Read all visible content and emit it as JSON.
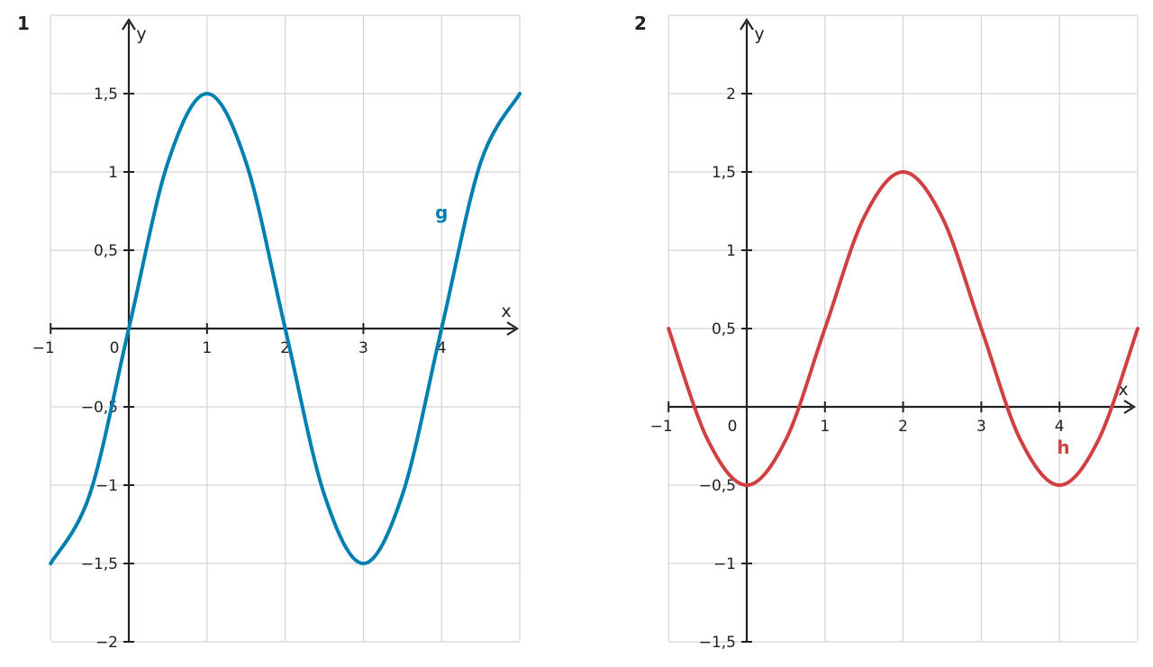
{
  "chart_data": [
    {
      "type": "line",
      "panel_number": "1",
      "xlabel": "x",
      "ylabel": "y",
      "xlim": [
        -1,
        5
      ],
      "ylim": [
        -2,
        2
      ],
      "x_ticks": [
        -1,
        0,
        1,
        2,
        3,
        4
      ],
      "x_tick_labels": [
        "−1",
        "0",
        "1",
        "2",
        "3",
        "4"
      ],
      "y_ticks": [
        -2,
        -1.5,
        -1,
        -0.5,
        0.5,
        1,
        1.5
      ],
      "y_tick_labels": [
        "−2",
        "−1,5",
        "−1",
        "−0,5",
        "0,5",
        "1",
        "1,5"
      ],
      "grid": true,
      "series": [
        {
          "name": "g",
          "color": "#0080b0",
          "label_at": [
            4.0,
            0.7
          ],
          "x": [
            -1,
            -0.5,
            0,
            0.5,
            1,
            1.5,
            2,
            2.5,
            3,
            3.5,
            4,
            4.5,
            5
          ],
          "y": [
            -1.5,
            -1.06,
            0,
            1.06,
            1.5,
            1.06,
            0,
            -1.06,
            -1.5,
            -1.06,
            0,
            1.06,
            1.5
          ]
        }
      ]
    },
    {
      "type": "line",
      "panel_number": "2",
      "xlabel": "x",
      "ylabel": "y",
      "xlim": [
        -1,
        5
      ],
      "ylim": [
        -1.5,
        2.5
      ],
      "x_ticks": [
        -1,
        0,
        1,
        2,
        3,
        4
      ],
      "x_tick_labels": [
        "−1",
        "0",
        "1",
        "2",
        "3",
        "4"
      ],
      "y_ticks": [
        -1.5,
        -1,
        -0.5,
        0.5,
        1,
        1.5,
        2
      ],
      "y_tick_labels": [
        "−1,5",
        "−1",
        "−0,5",
        "0,5",
        "1",
        "1,5",
        "2"
      ],
      "grid": true,
      "series": [
        {
          "name": "h",
          "color": "#d04040",
          "label_at": [
            4.05,
            -0.3
          ],
          "x": [
            -1,
            -0.5,
            0,
            0.5,
            1,
            1.5,
            2,
            2.5,
            3,
            3.5,
            4,
            4.5,
            5
          ],
          "y": [
            0.5,
            -0.21,
            -0.5,
            -0.21,
            0.5,
            1.21,
            1.5,
            1.21,
            0.5,
            -0.21,
            -0.5,
            -0.21,
            0.5
          ]
        }
      ]
    }
  ]
}
